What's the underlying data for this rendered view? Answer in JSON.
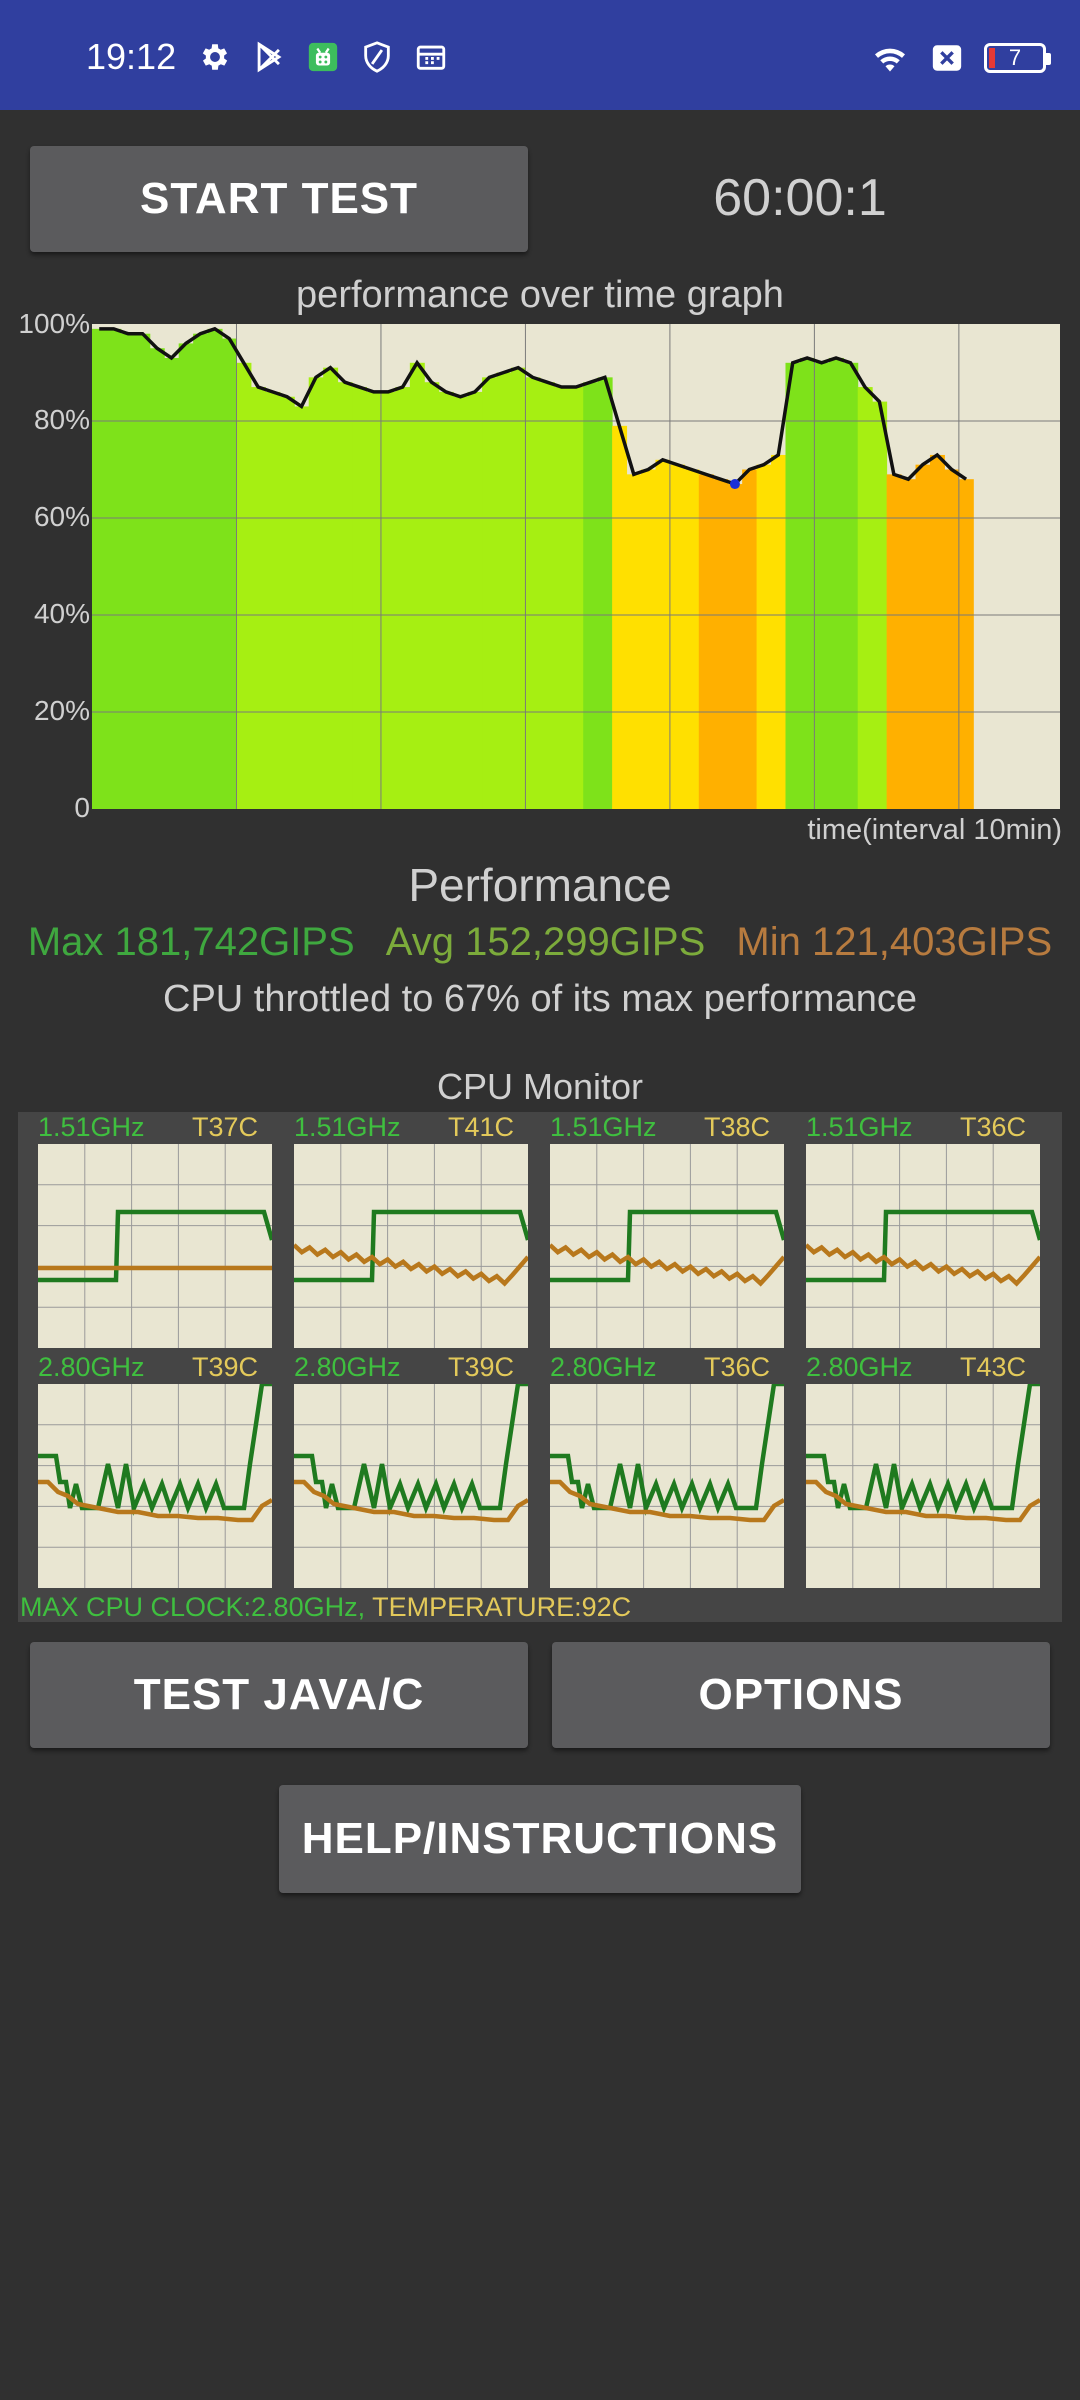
{
  "status_bar": {
    "time": "19:12",
    "icons": [
      "gear-icon",
      "play-store-icon",
      "app-badge-icon",
      "shield-icon",
      "calendar-icon"
    ],
    "right_icons": [
      "wifi-icon",
      "close-box-icon",
      "battery-icon"
    ],
    "battery_level": "7",
    "colors": {
      "background": "#303f9f",
      "battery_low": "#e53935"
    }
  },
  "controls": {
    "start_test_label": "START TEST",
    "timer": "60:00:1",
    "test_java_c_label": "TEST JAVA/C",
    "options_label": "OPTIONS",
    "help_label": "HELP/INSTRUCTIONS"
  },
  "performance_graph": {
    "title": "performance over time graph",
    "x_label": "time(interval 10min)",
    "y_ticks": [
      "100%",
      "80%",
      "60%",
      "40%",
      "20%",
      "0"
    ]
  },
  "chart_data": {
    "type": "line",
    "title": "performance over time graph",
    "xlabel": "time(interval 10min)",
    "ylabel": "",
    "ylim": [
      0,
      100
    ],
    "xlim": [
      0,
      67
    ],
    "grid": true,
    "x": [
      0,
      1,
      2,
      3,
      4,
      5,
      6,
      7,
      8,
      9,
      10,
      11,
      12,
      13,
      14,
      15,
      16,
      17,
      18,
      19,
      20,
      21,
      22,
      23,
      24,
      25,
      26,
      27,
      28,
      29,
      30,
      31,
      32,
      33,
      34,
      35,
      36,
      37,
      38,
      39,
      40,
      41,
      42,
      43,
      44,
      45,
      46,
      47,
      48,
      49,
      50,
      51,
      52,
      53,
      54,
      55,
      56,
      57,
      58,
      59,
      60
    ],
    "series": [
      {
        "values": [
          99,
          99,
          98,
          98,
          95,
          93,
          96,
          98,
          99,
          97,
          92,
          87,
          86,
          85,
          83,
          89,
          91,
          88,
          87,
          86,
          86,
          87,
          92,
          88,
          86,
          85,
          86,
          89,
          90,
          91,
          89,
          88,
          87,
          87,
          88,
          89,
          79,
          69,
          70,
          72,
          71,
          70,
          69,
          68,
          67,
          70,
          71,
          73,
          92,
          93,
          92,
          93,
          92,
          87,
          84,
          69,
          68,
          71,
          73,
          70,
          68
        ],
        "colors": [
          "green",
          "green",
          "green",
          "green",
          "green",
          "green",
          "green",
          "green",
          "green",
          "green",
          "lime",
          "lime",
          "lime",
          "lime",
          "lime",
          "lime",
          "lime",
          "lime",
          "lime",
          "lime",
          "lime",
          "lime",
          "lime",
          "lime",
          "lime",
          "lime",
          "lime",
          "lime",
          "lime",
          "lime",
          "lime",
          "lime",
          "lime",
          "lime",
          "green",
          "green",
          "yellow",
          "yellow",
          "yellow",
          "yellow",
          "yellow",
          "yellow",
          "orange",
          "orange",
          "orange",
          "orange",
          "yellow",
          "yellow",
          "green",
          "green",
          "green",
          "green",
          "green",
          "lime",
          "lime",
          "orange",
          "orange",
          "orange",
          "orange",
          "orange",
          "orange"
        ]
      }
    ]
  },
  "performance": {
    "title": "Performance",
    "max": "Max 181,742GIPS",
    "avg": "Avg 152,299GIPS",
    "min": "Min 121,403GIPS",
    "throttle": "CPU throttled to 67% of its max performance"
  },
  "cpu_monitor": {
    "title": "CPU Monitor",
    "cores": [
      {
        "freq": "1.51GHz",
        "temp": "T37C"
      },
      {
        "freq": "1.51GHz",
        "temp": "T41C"
      },
      {
        "freq": "1.51GHz",
        "temp": "T38C"
      },
      {
        "freq": "1.51GHz",
        "temp": "T36C"
      },
      {
        "freq": "2.80GHz",
        "temp": "T39C"
      },
      {
        "freq": "2.80GHz",
        "temp": "T39C"
      },
      {
        "freq": "2.80GHz",
        "temp": "T36C"
      },
      {
        "freq": "2.80GHz",
        "temp": "T43C"
      }
    ],
    "footer_clock": "MAX CPU CLOCK:2.80GHz,",
    "footer_temp": "TEMPERATURE:92C",
    "colors": {
      "freq_line": "#1f7a1f",
      "temp_line": "#b8781c"
    }
  }
}
